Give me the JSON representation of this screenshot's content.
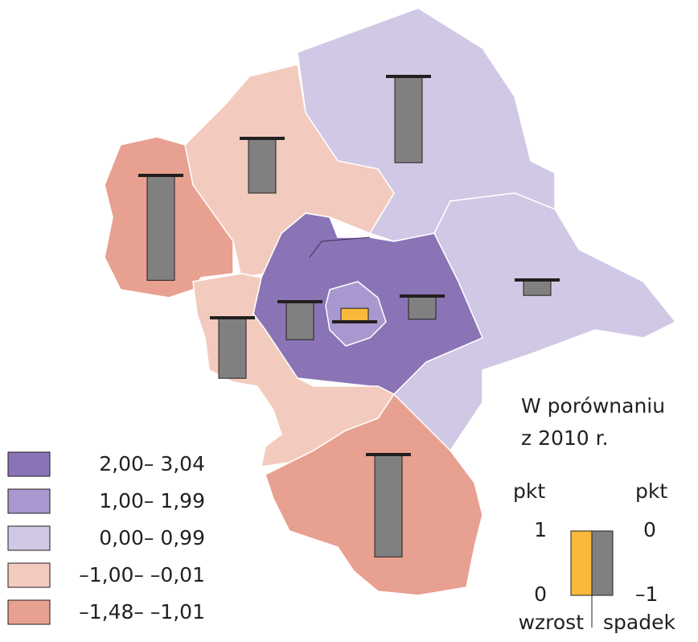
{
  "legend": [
    {
      "label": "2,00– 3,04",
      "color": "#8a74b6"
    },
    {
      "label": "1,00– 1,99",
      "color": "#a898cf"
    },
    {
      "label": "0,00– 0,99",
      "color": "#d0c8e4"
    },
    {
      "label": "–1,00– –0,01",
      "color": "#f3cbbe"
    },
    {
      "label": "–1,48– –1,01",
      "color": "#e8a090"
    }
  ],
  "key": {
    "title_lines": [
      "W porównaniu",
      "z 2010 r."
    ],
    "units": [
      "pkt",
      "pkt"
    ],
    "left_labels": [
      "1",
      "0"
    ],
    "right_labels": [
      "0",
      "–1"
    ],
    "increase": "wzrost",
    "decrease": "spadek",
    "increase_color": "#f9b93a",
    "decrease_color": "#808080"
  },
  "bars": [
    -1.34,
    -0.85,
    -1.63,
    -0.59,
    -0.94,
    0.21,
    -0.36,
    -0.24,
    -1.59
  ]
}
